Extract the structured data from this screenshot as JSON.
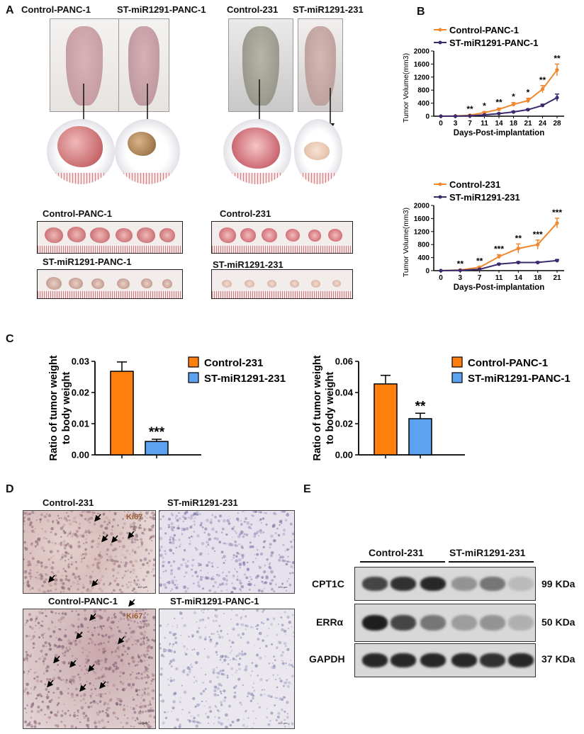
{
  "panels": {
    "A": "A",
    "B": "B",
    "C": "C",
    "D": "D",
    "E": "E"
  },
  "panelA": {
    "mouse_labels": [
      "Control-PANC-1",
      "ST-miR1291-PANC-1",
      "Control-231",
      "ST-miR1291-231"
    ],
    "row_labels": [
      "Control-PANC-1",
      "ST-miR1291-PANC-1",
      "Control-231",
      "ST-miR1291-231"
    ]
  },
  "chart_data": [
    {
      "type": "line",
      "title": "",
      "xlabel": "Days-Post-implantation",
      "ylabel": "Tumor Volume(mm3)",
      "ylim": [
        0,
        2000
      ],
      "yticks": [
        "0",
        "400",
        "800",
        "1200",
        "1600",
        "2000"
      ],
      "x": [
        "0",
        "3",
        "7",
        "11",
        "14",
        "18",
        "21",
        "24",
        "28"
      ],
      "series": [
        {
          "name": "Control-PANC-1",
          "color": "#f0872c",
          "values": [
            0,
            5,
            30,
            110,
            210,
            360,
            480,
            830,
            1420
          ],
          "err": [
            0,
            5,
            15,
            30,
            40,
            60,
            70,
            110,
            180
          ]
        },
        {
          "name": "ST-miR1291-PANC-1",
          "color": "#3b2a6e",
          "values": [
            0,
            2,
            10,
            40,
            80,
            130,
            200,
            330,
            570
          ],
          "err": [
            0,
            2,
            5,
            10,
            15,
            20,
            25,
            40,
            110
          ]
        }
      ],
      "significance": [
        "",
        "",
        "**",
        "*",
        "**",
        "*",
        "*",
        "**",
        "**"
      ]
    },
    {
      "type": "line",
      "title": "",
      "xlabel": "Days-Post-implantation",
      "ylabel": "Tumor Volume(mm3)",
      "ylim": [
        0,
        2000
      ],
      "yticks": [
        "0",
        "400",
        "800",
        "1200",
        "1600",
        "2000"
      ],
      "x": [
        "0",
        "3",
        "7",
        "11",
        "14",
        "18",
        "21"
      ],
      "series": [
        {
          "name": "Control-231",
          "color": "#f0872c",
          "values": [
            0,
            20,
            100,
            430,
            680,
            800,
            1460
          ],
          "err": [
            0,
            10,
            25,
            60,
            140,
            140,
            150
          ]
        },
        {
          "name": "ST-miR1291-231",
          "color": "#3b2a6e",
          "values": [
            0,
            10,
            40,
            200,
            250,
            250,
            310
          ],
          "err": [
            0,
            5,
            10,
            20,
            25,
            25,
            30
          ]
        }
      ],
      "significance": [
        "",
        "**",
        "**",
        "***",
        "**",
        "***",
        "***"
      ]
    },
    {
      "type": "bar",
      "ylabel": "Ratio of tumor weight to body weight",
      "ylim": [
        0,
        0.03
      ],
      "yticks": [
        "0.00",
        "0.01",
        "0.02",
        "0.03"
      ],
      "categories": [
        "Control-231",
        "ST-miR1291-231"
      ],
      "values": [
        0.0268,
        0.0043
      ],
      "err": [
        0.003,
        0.0007
      ],
      "colors": [
        "#ff7f0e",
        "#5ba3f0"
      ],
      "significance": [
        "",
        "***"
      ]
    },
    {
      "type": "bar",
      "ylabel": "Ratio of tumor weight to body weight",
      "ylim": [
        0,
        0.06
      ],
      "yticks": [
        "0.00",
        "0.02",
        "0.04",
        "0.06"
      ],
      "categories": [
        "Control-PANC-1",
        "ST-miR1291-PANC-1"
      ],
      "values": [
        0.0455,
        0.0232
      ],
      "err": [
        0.0055,
        0.0035
      ],
      "colors": [
        "#ff7f0e",
        "#5ba3f0"
      ],
      "significance": [
        "",
        "**"
      ]
    }
  ],
  "panelD": {
    "labels": [
      "Control-231",
      "ST-miR1291-231",
      "Control-PANC-1",
      "ST-miR1291-PANC-1"
    ],
    "stain_label": "Ki67",
    "scale_bar": "100 μm"
  },
  "panelE": {
    "groups": [
      "Control-231",
      "ST-miR1291-231"
    ],
    "proteins": [
      "CPT1C",
      "ERRα",
      "GAPDH"
    ],
    "sizes": [
      "99 KDa",
      "50 KDa",
      "37 KDa"
    ],
    "intensities": [
      [
        0.75,
        0.85,
        0.9,
        0.35,
        0.5,
        0.15
      ],
      [
        0.95,
        0.75,
        0.5,
        0.3,
        0.35,
        0.2
      ],
      [
        0.9,
        0.9,
        0.9,
        0.9,
        0.85,
        0.9
      ]
    ]
  }
}
